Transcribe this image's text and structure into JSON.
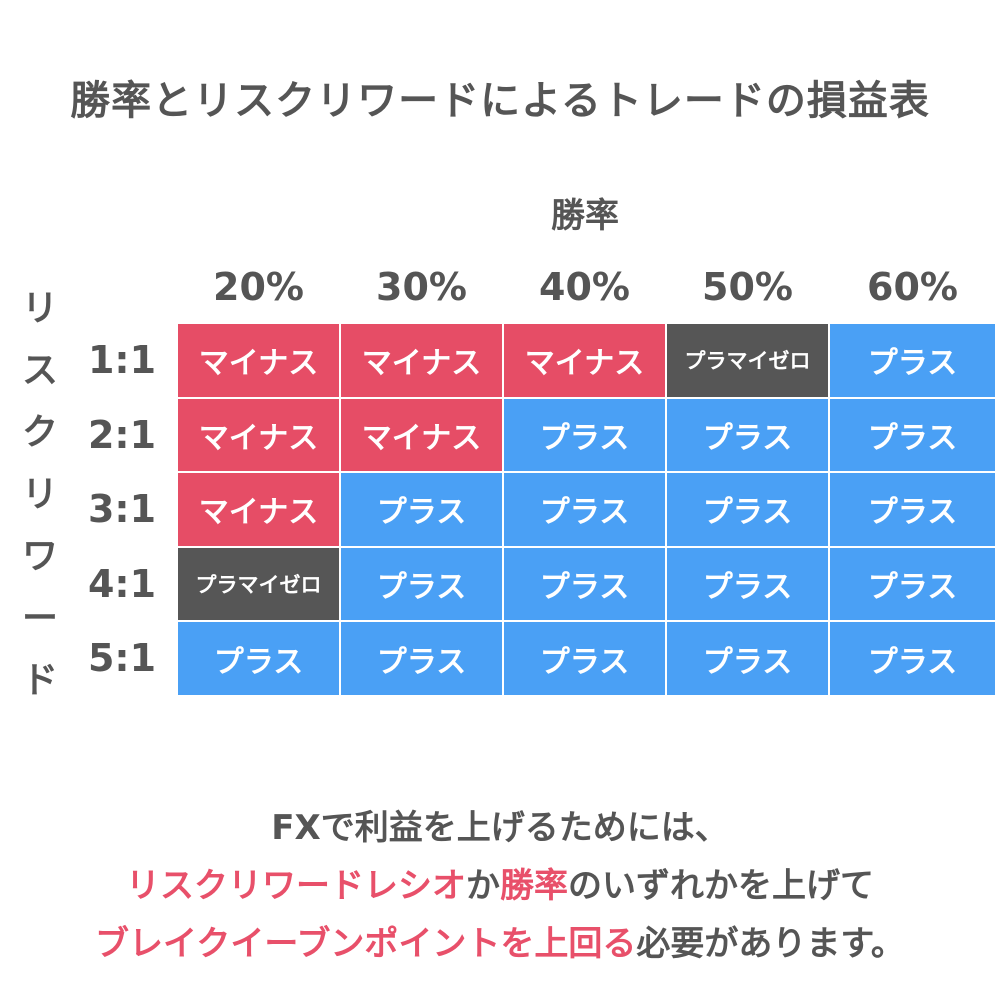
{
  "title": "勝率とリスクリワードによるトレードの損益表",
  "colors": {
    "minus": "#e64d66",
    "breakeven": "#565656",
    "plus": "#4aa0f5",
    "highlight": "#e8506a",
    "text": "#555555"
  },
  "chart_data": {
    "type": "table",
    "col_axis_label": "勝率",
    "row_axis_label": "リスクリワード",
    "columns": [
      "20%",
      "30%",
      "40%",
      "50%",
      "60%"
    ],
    "rows": [
      "1:1",
      "2:1",
      "3:1",
      "4:1",
      "5:1"
    ],
    "cells": [
      [
        "マイナス",
        "マイナス",
        "マイナス",
        "プラマイゼロ",
        "プラス"
      ],
      [
        "マイナス",
        "マイナス",
        "プラス",
        "プラス",
        "プラス"
      ],
      [
        "マイナス",
        "プラス",
        "プラス",
        "プラス",
        "プラス"
      ],
      [
        "プラマイゼロ",
        "プラス",
        "プラス",
        "プラス",
        "プラス"
      ],
      [
        "プラス",
        "プラス",
        "プラス",
        "プラス",
        "プラス"
      ]
    ]
  },
  "footer": {
    "line1": "FXで利益を上げるためには、",
    "line2": [
      {
        "text": "リスクリワードレシオ",
        "highlight": true
      },
      {
        "text": "か",
        "highlight": false
      },
      {
        "text": "勝率",
        "highlight": true
      },
      {
        "text": "のいずれかを上げて",
        "highlight": false
      }
    ],
    "line3": [
      {
        "text": "ブレイクイーブンポイントを上回る",
        "highlight": true
      },
      {
        "text": "必要があります。",
        "highlight": false
      }
    ]
  }
}
